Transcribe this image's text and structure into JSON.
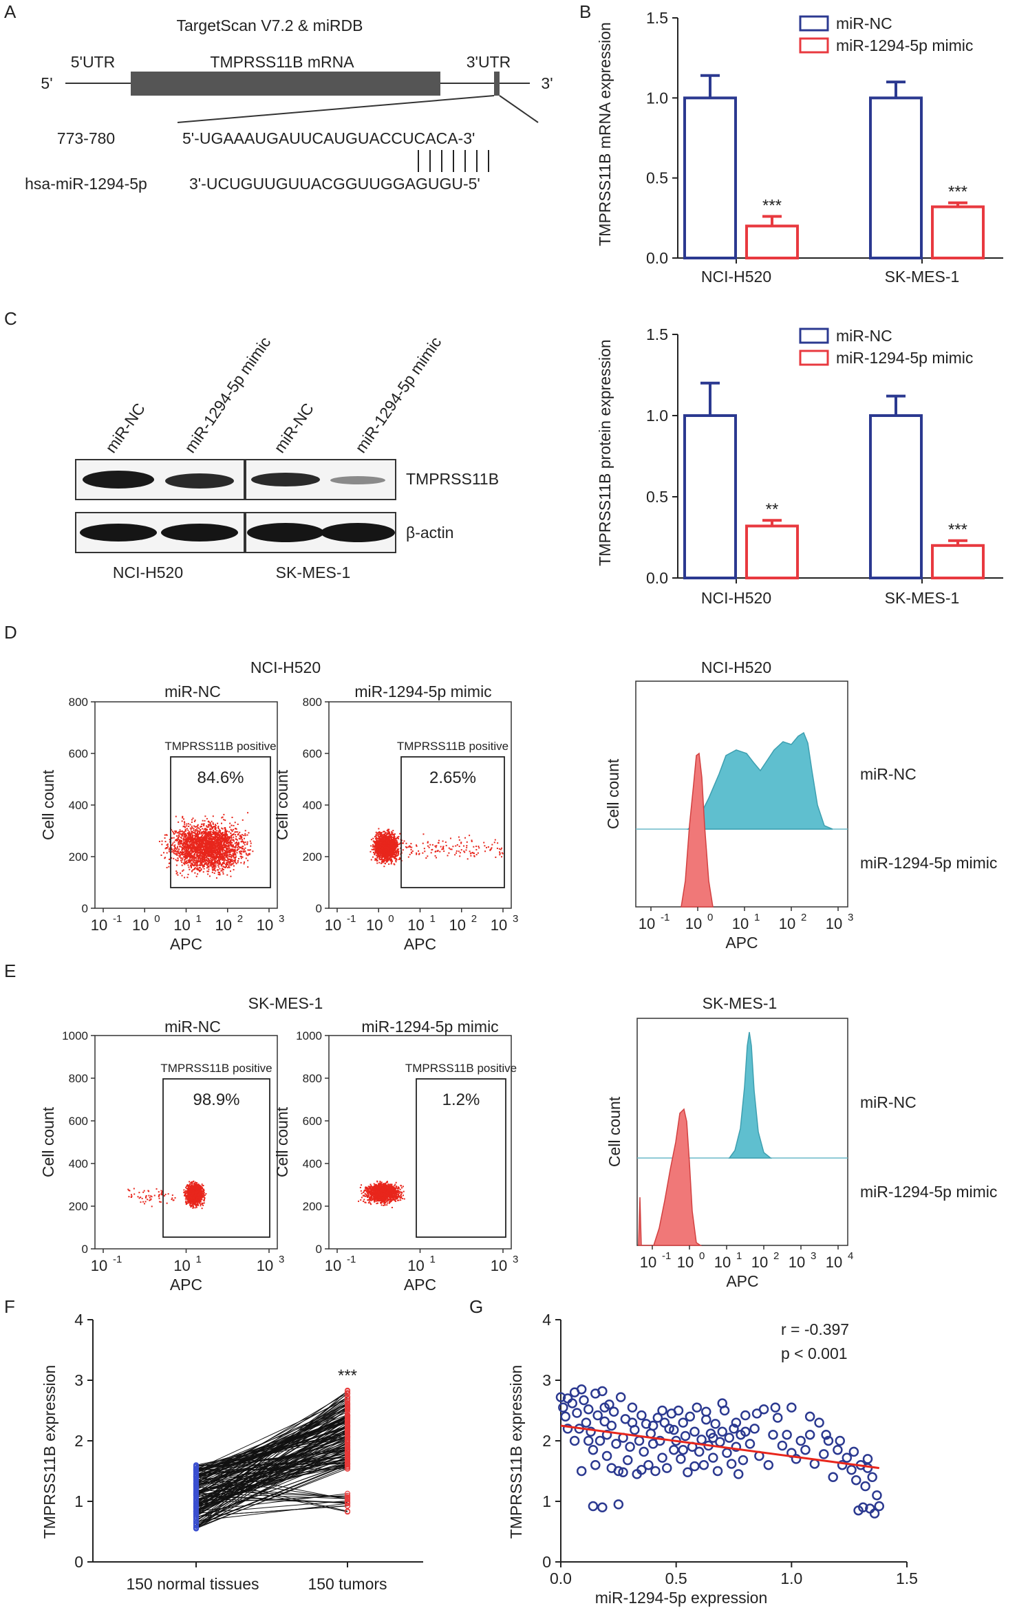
{
  "chart_data": [
    {
      "panel": "A",
      "type": "diagram",
      "title": "TargetScan V7.2 & miRDB",
      "mrna_label": "TMPRSS11B mRNA",
      "utr5_label": "5'UTR",
      "utr3_label": "3'UTR",
      "end5": "5'",
      "end3": "3'",
      "position": "773-780",
      "target_seq": "5'-UGAAAUGAUUCAUGUACCUCACA-3'",
      "mirna_name": "hsa-miR-1294-5p",
      "mirna_seq": "3'-UCUGUUGUUACGGUUGGAGUGU-5'",
      "seed_pairs": 7
    },
    {
      "panel": "B",
      "type": "bar",
      "ylabel": "TMPRSS11B mRNA expression",
      "ylim": [
        0,
        1.5
      ],
      "yticks": [
        "0.0",
        "0.5",
        "1.0",
        "1.5"
      ],
      "categories": [
        "NCI-H520",
        "SK-MES-1"
      ],
      "series": [
        {
          "name": "miR-NC",
          "values": [
            1.0,
            1.0
          ],
          "errors": [
            0.14,
            0.1
          ],
          "color": "#2b3990"
        },
        {
          "name": "miR-1294-5p mimic",
          "values": [
            0.2,
            0.32
          ],
          "errors": [
            0.06,
            0.025
          ],
          "color": "#e8393f"
        }
      ],
      "significance": [
        "***",
        "***"
      ]
    },
    {
      "panel": "C",
      "type": "western-blot",
      "lanes": [
        "miR-NC",
        "miR-1294-5p mimic",
        "miR-NC",
        "miR-1294-5p mimic"
      ],
      "rows": [
        "TMPRSS11B",
        "β-actin"
      ],
      "groups": [
        "NCI-H520",
        "SK-MES-1"
      ]
    },
    {
      "panel": "C2",
      "type": "bar",
      "ylabel": "TMPRSS11B protein expression",
      "ylim": [
        0,
        1.5
      ],
      "yticks": [
        "0.0",
        "0.5",
        "1.0",
        "1.5"
      ],
      "categories": [
        "NCI-H520",
        "SK-MES-1"
      ],
      "series": [
        {
          "name": "miR-NC",
          "values": [
            1.0,
            1.0
          ],
          "errors": [
            0.2,
            0.12
          ],
          "color": "#2b3990"
        },
        {
          "name": "miR-1294-5p mimic",
          "values": [
            0.32,
            0.2
          ],
          "errors": [
            0.035,
            0.03
          ],
          "color": "#e8393f"
        }
      ],
      "significance": [
        "**",
        "***"
      ]
    },
    {
      "panel": "D",
      "type": "scatter",
      "cell_line": "NCI-H520",
      "ylabel": "Cell count",
      "xlabel": "APC",
      "ylim": [
        0,
        800
      ],
      "yticks": [
        "0",
        "200",
        "400",
        "600",
        "800"
      ],
      "xticks_exp": [
        "-1",
        "0",
        "1",
        "2",
        "3"
      ],
      "gate_label": "TMPRSS11B positive",
      "plots": [
        {
          "title": "miR-NC",
          "percent": "84.6%"
        },
        {
          "title": "miR-1294-5p mimic",
          "percent": "2.65%"
        }
      ],
      "histogram": {
        "title": "NCI-H520",
        "ylabel": "Cell count",
        "xlabel": "APC",
        "xticks_exp": [
          "-1",
          "0",
          "1",
          "2",
          "3"
        ],
        "legend": [
          "miR-NC",
          "miR-1294-5p mimic"
        ]
      }
    },
    {
      "panel": "E",
      "type": "scatter",
      "cell_line": "SK-MES-1",
      "ylabel": "Cell count",
      "xlabel": "APC",
      "ylim": [
        0,
        1000
      ],
      "yticks": [
        "0",
        "200",
        "400",
        "600",
        "800",
        "1000"
      ],
      "xticks_exp": [
        "-1",
        "1",
        "3"
      ],
      "gate_label": "TMPRSS11B positive",
      "plots": [
        {
          "title": "miR-NC",
          "percent": "98.9%"
        },
        {
          "title": "miR-1294-5p mimic",
          "percent": "1.2%"
        }
      ],
      "histogram": {
        "title": "SK-MES-1",
        "ylabel": "Cell count",
        "xlabel": "APC",
        "xticks_exp": [
          "-1",
          "0",
          "1",
          "2",
          "3",
          "4"
        ],
        "legend": [
          "miR-NC",
          "miR-1294-5p mimic"
        ]
      }
    },
    {
      "panel": "F",
      "type": "line",
      "ylabel": "TMPRSS11B expression",
      "ylim": [
        0,
        4
      ],
      "yticks": [
        "0",
        "1",
        "2",
        "3",
        "4"
      ],
      "categories": [
        "150 normal tissues",
        "150 tumors"
      ],
      "n_pairs": 150,
      "normal_range": [
        0.55,
        1.6
      ],
      "tumor_range": [
        0.8,
        2.85
      ],
      "significance": "***"
    },
    {
      "panel": "G",
      "type": "scatter",
      "xlabel": "miR-1294-5p expression",
      "ylabel": "TMPRSS11B expression",
      "xlim": [
        0,
        1.5
      ],
      "ylim": [
        0,
        4
      ],
      "xticks": [
        "0.0",
        "0.5",
        "1.0",
        "1.5"
      ],
      "yticks": [
        "0",
        "1",
        "2",
        "3",
        "4"
      ],
      "r_text": "r = -0.397",
      "p_text": "p < 0.001",
      "fit": {
        "x0": 0.0,
        "y0": 2.25,
        "x1": 1.38,
        "y1": 1.55
      },
      "points": [
        [
          0.0,
          2.72
        ],
        [
          0.01,
          2.55
        ],
        [
          0.02,
          2.4
        ],
        [
          0.03,
          2.7
        ],
        [
          0.05,
          2.62
        ],
        [
          0.06,
          2.8
        ],
        [
          0.07,
          2.46
        ],
        [
          0.08,
          2.2
        ],
        [
          0.09,
          2.85
        ],
        [
          0.1,
          2.67
        ],
        [
          0.11,
          2.3
        ],
        [
          0.12,
          2.52
        ],
        [
          0.13,
          2.15
        ],
        [
          0.14,
          1.85
        ],
        [
          0.15,
          2.78
        ],
        [
          0.15,
          1.6
        ],
        [
          0.16,
          2.42
        ],
        [
          0.17,
          2.0
        ],
        [
          0.18,
          2.82
        ],
        [
          0.19,
          2.32
        ],
        [
          0.2,
          2.1
        ],
        [
          0.2,
          1.75
        ],
        [
          0.21,
          2.6
        ],
        [
          0.22,
          2.25
        ],
        [
          0.23,
          2.48
        ],
        [
          0.24,
          1.95
        ],
        [
          0.25,
          1.5
        ],
        [
          0.26,
          2.72
        ],
        [
          0.27,
          2.05
        ],
        [
          0.28,
          2.36
        ],
        [
          0.29,
          1.68
        ],
        [
          0.3,
          1.9
        ],
        [
          0.31,
          2.55
        ],
        [
          0.32,
          2.18
        ],
        [
          0.33,
          1.45
        ],
        [
          0.34,
          2.0
        ],
        [
          0.35,
          2.42
        ],
        [
          0.36,
          1.82
        ],
        [
          0.37,
          2.28
        ],
        [
          0.38,
          1.6
        ],
        [
          0.39,
          2.12
        ],
        [
          0.4,
          1.95
        ],
        [
          0.41,
          1.5
        ],
        [
          0.42,
          2.38
        ],
        [
          0.43,
          2.0
        ],
        [
          0.44,
          1.72
        ],
        [
          0.45,
          2.3
        ],
        [
          0.46,
          1.55
        ],
        [
          0.47,
          2.2
        ],
        [
          0.48,
          2.45
        ],
        [
          0.49,
          1.85
        ],
        [
          0.5,
          2.0
        ],
        [
          0.51,
          2.5
        ],
        [
          0.52,
          1.7
        ],
        [
          0.53,
          2.3
        ],
        [
          0.54,
          2.08
        ],
        [
          0.55,
          1.48
        ],
        [
          0.56,
          2.4
        ],
        [
          0.57,
          1.9
        ],
        [
          0.58,
          2.15
        ],
        [
          0.59,
          2.55
        ],
        [
          0.6,
          1.82
        ],
        [
          0.61,
          2.02
        ],
        [
          0.62,
          1.6
        ],
        [
          0.63,
          2.35
        ],
        [
          0.64,
          1.92
        ],
        [
          0.65,
          2.12
        ],
        [
          0.66,
          1.72
        ],
        [
          0.67,
          2.28
        ],
        [
          0.68,
          1.5
        ],
        [
          0.69,
          1.98
        ],
        [
          0.7,
          2.15
        ],
        [
          0.71,
          2.5
        ],
        [
          0.72,
          1.8
        ],
        [
          0.73,
          2.05
        ],
        [
          0.74,
          1.62
        ],
        [
          0.75,
          2.2
        ],
        [
          0.76,
          1.9
        ],
        [
          0.77,
          1.45
        ],
        [
          0.78,
          2.1
        ],
        [
          0.79,
          1.68
        ],
        [
          0.8,
          2.42
        ],
        [
          0.82,
          1.95
        ],
        [
          0.84,
          2.2
        ],
        [
          0.86,
          1.75
        ],
        [
          0.88,
          2.52
        ],
        [
          0.9,
          1.6
        ],
        [
          0.92,
          2.1
        ],
        [
          0.94,
          2.38
        ],
        [
          0.96,
          1.92
        ],
        [
          0.98,
          2.1
        ],
        [
          1.0,
          2.55
        ],
        [
          1.02,
          1.7
        ],
        [
          1.04,
          2.0
        ],
        [
          1.06,
          1.85
        ],
        [
          1.08,
          2.1
        ],
        [
          1.1,
          1.62
        ],
        [
          1.12,
          2.3
        ],
        [
          1.14,
          1.78
        ],
        [
          1.16,
          2.0
        ],
        [
          1.18,
          1.4
        ],
        [
          1.2,
          1.85
        ],
        [
          1.22,
          1.6
        ],
        [
          1.24,
          1.72
        ],
        [
          1.26,
          1.52
        ],
        [
          1.28,
          1.35
        ],
        [
          1.29,
          0.85
        ],
        [
          1.3,
          1.6
        ],
        [
          1.31,
          0.9
        ],
        [
          1.32,
          1.25
        ],
        [
          1.33,
          1.7
        ],
        [
          1.34,
          0.88
        ],
        [
          1.35,
          1.4
        ],
        [
          1.36,
          0.8
        ],
        [
          1.37,
          1.1
        ],
        [
          1.38,
          0.92
        ],
        [
          0.14,
          0.92
        ],
        [
          0.18,
          0.9
        ],
        [
          0.25,
          0.95
        ],
        [
          0.09,
          1.5
        ],
        [
          0.06,
          2.0
        ],
        [
          0.27,
          1.48
        ],
        [
          0.35,
          1.52
        ],
        [
          0.44,
          2.5
        ],
        [
          0.58,
          1.58
        ],
        [
          0.7,
          2.62
        ],
        [
          0.85,
          2.45
        ],
        [
          0.93,
          2.55
        ],
        [
          1.08,
          2.4
        ],
        [
          1.15,
          2.1
        ],
        [
          1.21,
          2.0
        ],
        [
          0.03,
          2.2
        ],
        [
          0.12,
          2.0
        ],
        [
          0.22,
          1.55
        ],
        [
          0.4,
          2.25
        ],
        [
          0.53,
          1.85
        ],
        [
          0.63,
          2.48
        ],
        [
          0.76,
          2.3
        ],
        [
          0.8,
          2.15
        ],
        [
          0.66,
          2.05
        ],
        [
          0.49,
          2.18
        ],
        [
          0.31,
          2.3
        ],
        [
          0.19,
          2.55
        ],
        [
          1.27,
          1.82
        ],
        [
          1.33,
          1.55
        ],
        [
          1.0,
          1.8
        ]
      ]
    }
  ],
  "panel_letters": [
    "A",
    "B",
    "C",
    "D",
    "E",
    "F",
    "G"
  ]
}
